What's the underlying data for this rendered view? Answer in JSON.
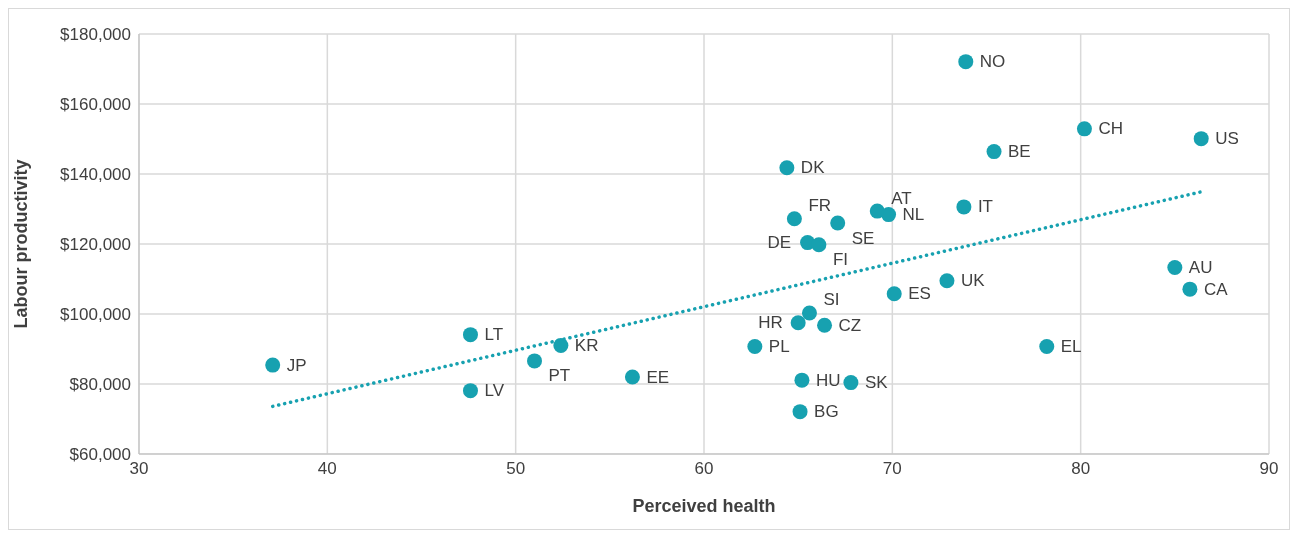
{
  "chart_data": {
    "type": "scatter",
    "xlabel": "Perceived health",
    "ylabel": "Labour productivity",
    "xlim": [
      30,
      90
    ],
    "xticks": [
      30,
      40,
      50,
      60,
      70,
      80,
      90
    ],
    "ylim": [
      60000,
      180000
    ],
    "yticks": [
      {
        "value": 60000,
        "label": "$60,000"
      },
      {
        "value": 80000,
        "label": "$80,000"
      },
      {
        "value": 100000,
        "label": "$100,000"
      },
      {
        "value": 120000,
        "label": "$120,000"
      },
      {
        "value": 140000,
        "label": "$140,000"
      },
      {
        "value": 160000,
        "label": "$160,000"
      },
      {
        "value": 180000,
        "label": "$180,000"
      }
    ],
    "grid": true,
    "marker": "circle",
    "series": [
      {
        "color": "#17a1b0",
        "x": [
          37.1,
          47.6,
          47.6,
          51.0,
          52.4,
          56.2,
          62.7,
          65.6,
          65.0,
          66.4,
          65.2,
          67.8,
          65.1,
          64.4,
          64.8,
          67.1,
          69.2,
          69.8,
          65.5,
          66.1,
          73.8,
          73.9,
          75.4,
          80.2,
          86.4,
          85.0,
          85.8,
          72.9,
          70.1,
          78.2
        ],
        "values": [
          85400,
          94100,
          78100,
          86600,
          91000,
          82000,
          90700,
          100300,
          97500,
          96800,
          81100,
          80400,
          72100,
          141800,
          127200,
          126000,
          129400,
          128400,
          120400,
          119800,
          130600,
          172100,
          146400,
          152900,
          150100,
          113300,
          107100,
          109500,
          105800,
          90700
        ]
      },
      {
        "type": "line",
        "color": "#17a1b0",
        "line_style": "dotted",
        "marker": "none",
        "x": [
          37.1,
          86.4
        ],
        "values": [
          73600,
          134900
        ]
      }
    ],
    "annotations": [
      {
        "text": "JP",
        "x": 37.1,
        "y": 85400
      },
      {
        "text": "LT",
        "x": 47.6,
        "y": 94100
      },
      {
        "text": "LV",
        "x": 47.6,
        "y": 78100
      },
      {
        "text": "PT",
        "x": 51.0,
        "y": 86600
      },
      {
        "text": "KR",
        "x": 52.4,
        "y": 91000
      },
      {
        "text": "EE",
        "x": 56.2,
        "y": 82000
      },
      {
        "text": "PL",
        "x": 62.7,
        "y": 90700
      },
      {
        "text": "SI",
        "x": 65.6,
        "y": 100300
      },
      {
        "text": "HR",
        "x": 65.0,
        "y": 97500
      },
      {
        "text": "CZ",
        "x": 66.4,
        "y": 96800
      },
      {
        "text": "HU",
        "x": 65.2,
        "y": 81100
      },
      {
        "text": "SK",
        "x": 67.8,
        "y": 80400
      },
      {
        "text": "BG",
        "x": 65.1,
        "y": 72100
      },
      {
        "text": "DK",
        "x": 64.4,
        "y": 141800
      },
      {
        "text": "FR",
        "x": 64.8,
        "y": 127200
      },
      {
        "text": "SE",
        "x": 67.1,
        "y": 126000
      },
      {
        "text": "AT",
        "x": 69.2,
        "y": 129400
      },
      {
        "text": "NL",
        "x": 69.8,
        "y": 128400
      },
      {
        "text": "DE",
        "x": 65.5,
        "y": 120400
      },
      {
        "text": "FI",
        "x": 66.1,
        "y": 119800
      },
      {
        "text": "IT",
        "x": 73.8,
        "y": 130600
      },
      {
        "text": "NO",
        "x": 73.9,
        "y": 172100
      },
      {
        "text": "BE",
        "x": 75.4,
        "y": 146400
      },
      {
        "text": "CH",
        "x": 80.2,
        "y": 152900
      },
      {
        "text": "US",
        "x": 86.4,
        "y": 150100
      },
      {
        "text": "AU",
        "x": 85.0,
        "y": 113300
      },
      {
        "text": "CA",
        "x": 85.8,
        "y": 107100
      },
      {
        "text": "UK",
        "x": 72.9,
        "y": 109500
      },
      {
        "text": "ES",
        "x": 70.1,
        "y": 105800
      },
      {
        "text": "EL",
        "x": 78.2,
        "y": 90700
      }
    ]
  }
}
